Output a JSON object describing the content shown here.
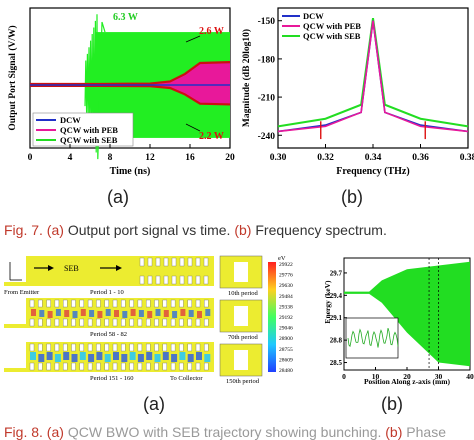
{
  "chart_data": [
    {
      "type": "line",
      "xlabel": "Time (ns)",
      "ylabel": "Output Port Signal (V/W)",
      "xlim": [
        0,
        20
      ],
      "xticks": [
        "0",
        "4",
        "8",
        "12",
        "16",
        "20"
      ],
      "yticks": [],
      "grid": false,
      "legend": "bottom-left",
      "series": [
        {
          "name": "DCW",
          "color": "#2230c8",
          "x": [
            0,
            5.5,
            20
          ],
          "y": [
            0,
            0,
            0
          ]
        },
        {
          "name": "QCW with PEB",
          "color": "#e8189a",
          "x": [
            0,
            7,
            12,
            14,
            15.5,
            17,
            20
          ],
          "y": [
            0,
            0,
            0.05,
            0.3,
            1.2,
            2.5,
            2.6
          ]
        },
        {
          "name": "QCW with SEB",
          "color": "#22dd22",
          "x": [
            0,
            5.5,
            6.5,
            20
          ],
          "y": [
            0,
            0,
            6.3,
            6.3
          ]
        }
      ],
      "annotations": [
        "6.3 W",
        "2.6 W",
        "2.2 W"
      ]
    },
    {
      "type": "line",
      "xlabel": "Frequency (THz)",
      "ylabel": "Magnitude (dB 20log10)",
      "xlim": [
        0.3,
        0.38
      ],
      "ylim": [
        -250,
        -140
      ],
      "xticks": [
        "0.30",
        "0.32",
        "0.34",
        "0.36",
        "0.38"
      ],
      "yticks": [
        "-150",
        "-180",
        "-210",
        "-240"
      ],
      "grid": false,
      "legend": "top-left",
      "series": [
        {
          "name": "DCW",
          "color": "#2230c8",
          "x": [
            0.3,
            0.32,
            0.335,
            0.34,
            0.345,
            0.36,
            0.38
          ],
          "y": [
            -237,
            -232,
            -222,
            -150,
            -222,
            -232,
            -237
          ]
        },
        {
          "name": "QCW with PEB",
          "color": "#e8189a",
          "x": [
            0.3,
            0.32,
            0.335,
            0.34,
            0.345,
            0.36,
            0.38
          ],
          "y": [
            -237,
            -233,
            -222,
            -150,
            -222,
            -233,
            -237
          ]
        },
        {
          "name": "QCW with SEB",
          "color": "#22dd22",
          "x": [
            0.3,
            0.32,
            0.335,
            0.34,
            0.345,
            0.36,
            0.38
          ],
          "y": [
            -233,
            -227,
            -216,
            -148,
            -216,
            -227,
            -233
          ]
        }
      ]
    },
    {
      "type": "scatter",
      "xlabel": "Position Along z-axis (mm)",
      "ylabel": "Energy (keV)",
      "xlim": [
        0,
        40
      ],
      "ylim": [
        28.4,
        29.9
      ],
      "xticks": [
        "0",
        "10",
        "20",
        "30",
        "40"
      ],
      "yticks": [
        "28.5",
        "28.8",
        "29.1",
        "29.4",
        "29.7"
      ],
      "series": [
        {
          "name": "",
          "color": "#22dd22",
          "x": [
            0,
            8,
            12,
            20,
            30,
            40
          ],
          "y": [
            29.45,
            29.45,
            29.6,
            29.75,
            29.8,
            29.85
          ]
        }
      ]
    }
  ],
  "fig7": {
    "sub_a": "(a)",
    "sub_b": "(b)",
    "caption_num": "Fig. 7.",
    "caption_a": "(a)",
    "caption_a_text": "Output port signal vs time.",
    "caption_b": "(b)",
    "caption_b_text": "Frequency spectrum."
  },
  "fig8": {
    "sub_a": "(a)",
    "sub_b": "(b)",
    "caption_num": "Fig. 8.",
    "caption_a": "(a)",
    "caption_a_text": "QCW BWO with SEB trajectory showing bunching.",
    "caption_b": "(b)",
    "caption_b_text": "Phase",
    "panel_a": {
      "seb_label": "SEB",
      "from_emitter": "From Emitter",
      "period_1": "Period 1 - 10",
      "period_2": "Period 58 - 82",
      "period_3": "Period 151 - 160",
      "to_collector": "To Collector",
      "period_10th": "10th period",
      "period_70th": "70th period",
      "period_150th": "150th period",
      "colorbar_unit": "eV",
      "colorbar_ticks": [
        "29922",
        "29776",
        "29630",
        "29484",
        "29338",
        "29192",
        "29046",
        "28900",
        "28755",
        "28609",
        "28480"
      ]
    }
  },
  "colors": {
    "dcw": "#2230c8",
    "peb": "#e8189a",
    "seb": "#22dd22",
    "caption_accent": "#c0392b"
  }
}
